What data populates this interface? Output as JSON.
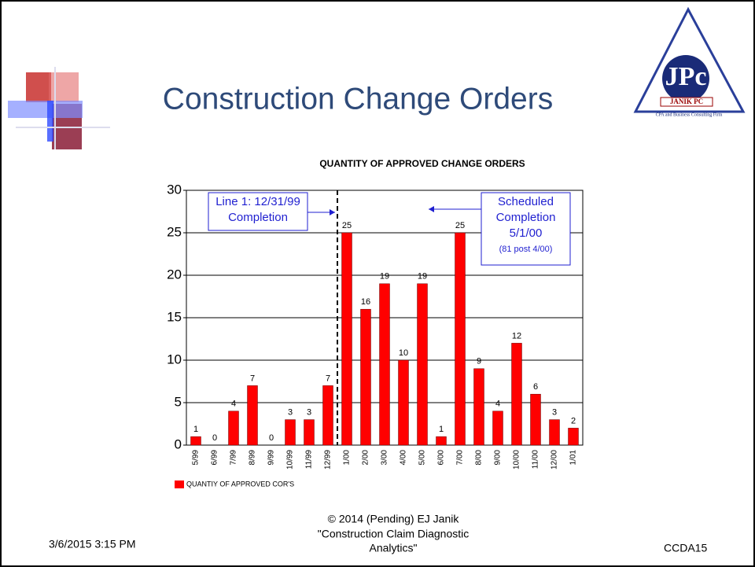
{
  "slide_title": "Construction Change Orders",
  "logo": {
    "mark": "JPc",
    "name": "JANIK PC",
    "tagline": "CPA and Business Consulting Firm"
  },
  "chart_data": {
    "type": "bar",
    "title": "QUANTITY OF APPROVED CHANGE ORDERS",
    "categories": [
      "5/99",
      "6/99",
      "7/99",
      "8/99",
      "9/99",
      "10/99",
      "11/99",
      "12/99",
      "1/00",
      "2/00",
      "3/00",
      "4/00",
      "5/00",
      "6/00",
      "7/00",
      "8/00",
      "9/00",
      "10/00",
      "11/00",
      "12/00",
      "1/01"
    ],
    "series": [
      {
        "name": "QUANTIY OF APPROVED COR'S",
        "color": "#ff0000",
        "values": [
          1,
          0,
          4,
          7,
          0,
          3,
          3,
          7,
          25,
          16,
          19,
          10,
          19,
          1,
          25,
          9,
          4,
          12,
          6,
          3,
          2
        ]
      }
    ],
    "ylim": [
      0,
      30
    ],
    "yticks": [
      0,
      5,
      10,
      15,
      20,
      25,
      30
    ],
    "grid": true,
    "annotations": [
      {
        "lines": [
          "Line 1: 12/31/99",
          "Completion"
        ]
      },
      {
        "lines": [
          "Scheduled",
          "Completion",
          "5/1/00",
          "(81 post 4/00)"
        ]
      }
    ]
  },
  "footer": {
    "date": "3/6/2015 3:15 PM",
    "center": [
      "© 2014 (Pending) EJ Janik",
      "\"Construction Claim Diagnostic",
      "Analytics\""
    ],
    "code": "CCDA15"
  }
}
